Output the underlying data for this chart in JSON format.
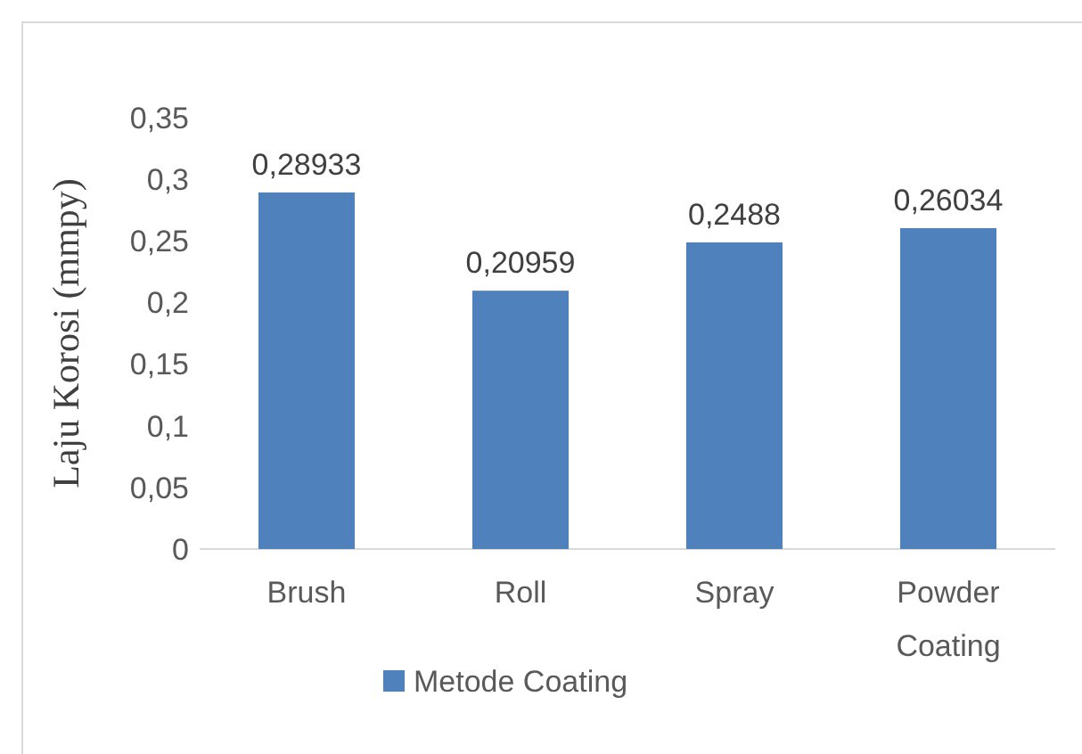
{
  "chart_data": {
    "type": "bar",
    "ylabel": "Laju Korosi (mmpy)",
    "categories": [
      "Brush",
      "Roll",
      "Spray",
      "Powder Coating"
    ],
    "series": [
      {
        "name": "Metode Coating",
        "color": "#4f81bd",
        "values": [
          0.28933,
          0.20959,
          0.2488,
          0.26034
        ],
        "value_labels": [
          "0,28933",
          "0,20959",
          "0,2488",
          "0,26034"
        ]
      }
    ],
    "ylim": [
      0,
      0.35
    ],
    "yticks": [
      {
        "value": 0,
        "label": "0"
      },
      {
        "value": 0.05,
        "label": "0,05"
      },
      {
        "value": 0.1,
        "label": "0,1"
      },
      {
        "value": 0.15,
        "label": "0,15"
      },
      {
        "value": 0.2,
        "label": "0,2"
      },
      {
        "value": 0.25,
        "label": "0,25"
      },
      {
        "value": 0.3,
        "label": "0,3"
      },
      {
        "value": 0.35,
        "label": "0,35"
      }
    ],
    "grid": false,
    "legend": "bottom"
  }
}
